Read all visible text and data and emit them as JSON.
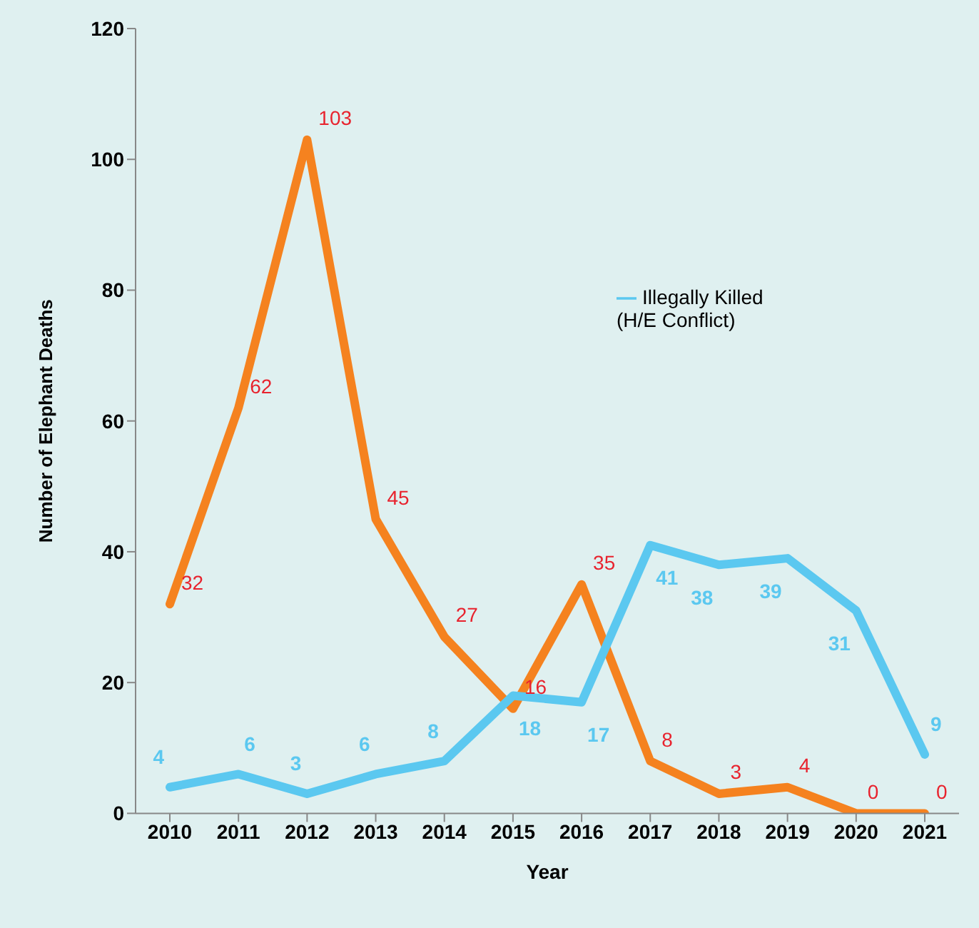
{
  "chart_data": {
    "type": "line",
    "xlabel": "Year",
    "ylabel": "Number of Elephant Deaths",
    "categories": [
      "2010",
      "2011",
      "2012",
      "2013",
      "2014",
      "2015",
      "2016",
      "2017",
      "2018",
      "2019",
      "2020",
      "2021"
    ],
    "series": [
      {
        "color": "#f5821f",
        "values": [
          32,
          62,
          103,
          45,
          27,
          16,
          35,
          8,
          3,
          4,
          0,
          0
        ]
      },
      {
        "name": "Illegally Killed (H/E Conflict)",
        "color": "#5bc8f0",
        "values": [
          4,
          6,
          3,
          6,
          8,
          18,
          17,
          41,
          38,
          39,
          31,
          9
        ]
      }
    ],
    "ylim": [
      0,
      120
    ],
    "yticks": [
      0,
      20,
      40,
      60,
      80,
      100,
      120
    ],
    "grid": false,
    "legend": "right",
    "data_labels": true,
    "marker": "none",
    "line_style": "solid"
  }
}
